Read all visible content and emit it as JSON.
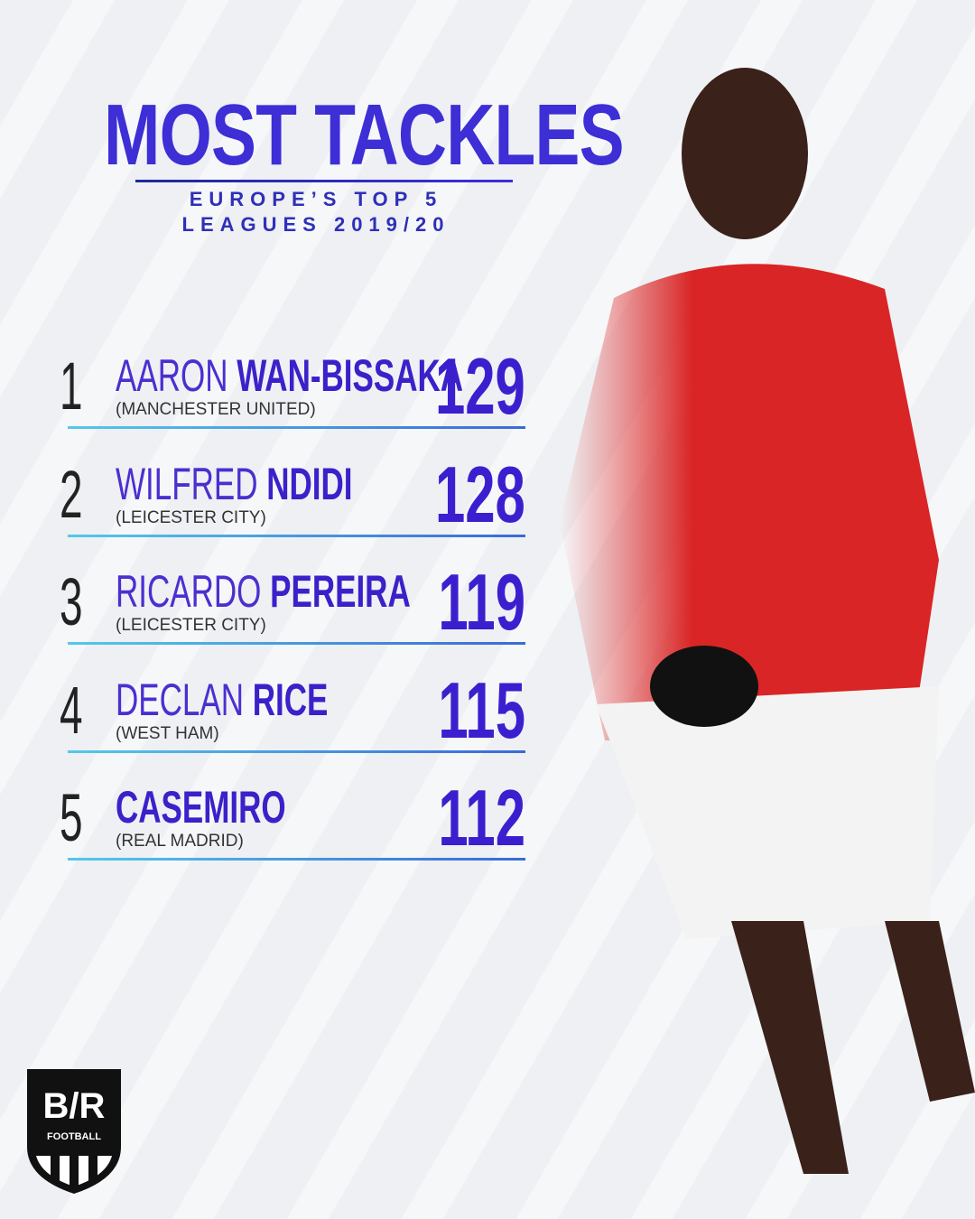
{
  "header": {
    "title": "MOST TACKLES",
    "subtitle": [
      "EUROPE’S TOP 5",
      "LEAGUES 2019/20"
    ]
  },
  "rows": [
    {
      "rank": 1,
      "first": "AARON",
      "last": "WAN-BISSAKA",
      "club": "(MANCHESTER UNITED)",
      "tackles": 129
    },
    {
      "rank": 2,
      "first": "WILFRED",
      "last": "NDIDI",
      "club": "(LEICESTER CITY)",
      "tackles": 128
    },
    {
      "rank": 3,
      "first": "RICARDO",
      "last": "PEREIRA",
      "club": "(LEICESTER CITY)",
      "tackles": 119
    },
    {
      "rank": 4,
      "first": "DECLAN",
      "last": "RICE",
      "club": "(WEST HAM)",
      "tackles": 115
    },
    {
      "rank": 5,
      "last": "CASEMIRO",
      "club": "(REAL MADRID)",
      "tackles": 112
    }
  ],
  "logo": {
    "mark": "B/R",
    "label": "FOOTBALL"
  }
}
